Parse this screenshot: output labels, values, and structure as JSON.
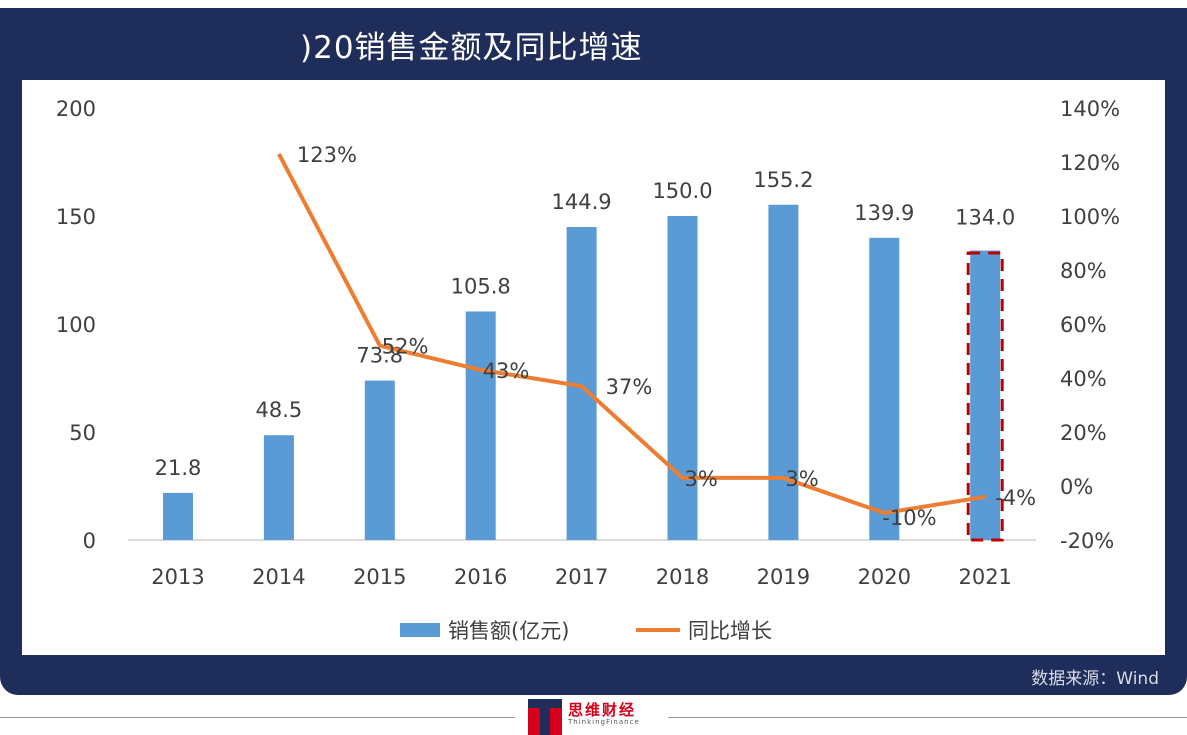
{
  "header": {
    "title": ")20销售金额及同比增速"
  },
  "source": "数据来源：Wind",
  "logo": {
    "text_cn": "思维财经",
    "text_en": "ThinkingFinance"
  },
  "colors": {
    "frame": "#1f2d5a",
    "bar": "#5b9bd5",
    "line": "#ed7d31",
    "highlight_box": "#c00000"
  },
  "chart_data": {
    "type": "bar+line",
    "categories": [
      "2013",
      "2014",
      "2015",
      "2016",
      "2017",
      "2018",
      "2019",
      "2020",
      "2021"
    ],
    "series": [
      {
        "name": "销售额(亿元)",
        "type": "bar",
        "axis": "left",
        "values": [
          21.8,
          48.5,
          73.8,
          105.8,
          144.9,
          150.0,
          155.2,
          139.9,
          134.0
        ],
        "labels": [
          "21.8",
          "48.5",
          "73.8",
          "105.8",
          "144.9",
          "150.0",
          "155.2",
          "139.9",
          "134.0"
        ]
      },
      {
        "name": "同比增长",
        "type": "line",
        "axis": "right",
        "values": [
          null,
          123,
          52,
          43,
          37,
          3,
          3,
          -10,
          -4
        ],
        "labels": [
          "",
          "123%",
          "52%",
          "43%",
          "37%",
          "3%",
          "3%",
          "-10%",
          "-4%"
        ]
      }
    ],
    "left_axis": {
      "range": [
        0,
        200
      ],
      "ticks": [
        "0",
        "50",
        "100",
        "150",
        "200"
      ]
    },
    "right_axis": {
      "range": [
        -20,
        140
      ],
      "ticks": [
        "-20%",
        "0%",
        "20%",
        "40%",
        "60%",
        "80%",
        "100%",
        "120%",
        "140%"
      ]
    },
    "highlight": "2021",
    "legend_position": "bottom",
    "grid": false
  }
}
